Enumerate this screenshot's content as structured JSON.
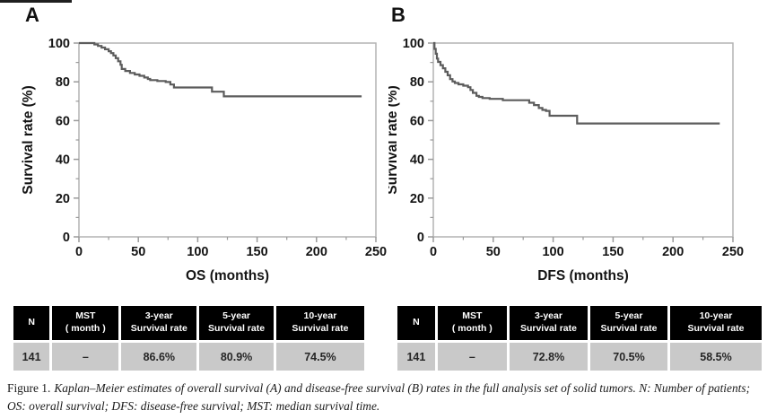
{
  "caption": {
    "prefix": "Figure 1.",
    "text": "Kaplan–Meier estimates of overall survival (A) and disease-free survival (B) rates in the full analysis set of solid tumors. N: Number of patients; OS: overall survival; DFS: disease-free survival; MST: median survival time."
  },
  "tables": [
    {
      "headers": [
        [
          "N",
          ""
        ],
        [
          "MST",
          "( month )"
        ],
        [
          "3-year",
          "Survival rate"
        ],
        [
          "5-year",
          "Survival rate"
        ],
        [
          "10-year",
          "Survival rate"
        ]
      ],
      "row": [
        "141",
        "–",
        "86.6%",
        "80.9%",
        "74.5%"
      ]
    },
    {
      "headers": [
        [
          "N",
          ""
        ],
        [
          "MST",
          "( month )"
        ],
        [
          "3-year",
          "Survival rate"
        ],
        [
          "5-year",
          "Survival rate"
        ],
        [
          "10-year",
          "Survival rate"
        ]
      ],
      "row": [
        "141",
        "–",
        "72.8%",
        "70.5%",
        "58.5%"
      ]
    }
  ],
  "chart_data": [
    {
      "type": "line",
      "step": true,
      "panel_label": "A",
      "title": "",
      "xlabel": "OS (months)",
      "ylabel": "Survival rate (%)",
      "xlim": [
        0,
        250
      ],
      "ylim": [
        0,
        100
      ],
      "xticks": [
        0,
        50,
        100,
        150,
        200,
        250
      ],
      "yticks": [
        0,
        20,
        40,
        60,
        80,
        100
      ],
      "x_minor_step": 25,
      "y_minor_step": 10,
      "grid": false,
      "legend": "none",
      "line_color": "#5c5c5c",
      "axis_color": "#b3b3b3",
      "tick_color": "#9a9a9a",
      "points": [
        [
          0,
          100
        ],
        [
          11,
          100
        ],
        [
          13,
          99.3
        ],
        [
          16,
          98.5
        ],
        [
          19,
          97.7
        ],
        [
          22,
          96.8
        ],
        [
          25,
          95.8
        ],
        [
          27,
          94.8
        ],
        [
          29,
          93.6
        ],
        [
          31,
          92.2
        ],
        [
          33,
          90.6
        ],
        [
          35,
          88.8
        ],
        [
          36,
          86.6
        ],
        [
          39,
          85.6
        ],
        [
          43,
          84.6
        ],
        [
          47,
          83.8
        ],
        [
          51,
          83.1
        ],
        [
          55,
          82.2
        ],
        [
          58,
          81.5
        ],
        [
          60,
          80.9
        ],
        [
          66,
          80.4
        ],
        [
          73,
          79.9
        ],
        [
          77,
          78.6
        ],
        [
          80,
          77.1
        ],
        [
          112,
          74.9
        ],
        [
          122,
          72.5
        ],
        [
          238,
          72.5
        ]
      ],
      "annotations": {
        "three_year": "86.6%",
        "five_year": "80.9%",
        "ten_year": "74.5%"
      }
    },
    {
      "type": "line",
      "step": true,
      "panel_label": "B",
      "title": "",
      "xlabel": "DFS (months)",
      "ylabel": "Survival rate (%)",
      "xlim": [
        0,
        250
      ],
      "ylim": [
        0,
        100
      ],
      "xticks": [
        0,
        50,
        100,
        150,
        200,
        250
      ],
      "yticks": [
        0,
        20,
        40,
        60,
        80,
        100
      ],
      "x_minor_step": 25,
      "y_minor_step": 10,
      "grid": false,
      "legend": "none",
      "line_color": "#5c5c5c",
      "axis_color": "#b3b3b3",
      "tick_color": "#9a9a9a",
      "points": [
        [
          0,
          100
        ],
        [
          1,
          97
        ],
        [
          2,
          94.5
        ],
        [
          3,
          92
        ],
        [
          4,
          90.3
        ],
        [
          6,
          88.6
        ],
        [
          8,
          87
        ],
        [
          10,
          85.2
        ],
        [
          12,
          83.4
        ],
        [
          14,
          81.4
        ],
        [
          16,
          80.2
        ],
        [
          18,
          79.4
        ],
        [
          21,
          78.7
        ],
        [
          25,
          78
        ],
        [
          29,
          77.2
        ],
        [
          31,
          75.8
        ],
        [
          33,
          74.3
        ],
        [
          36,
          72.8
        ],
        [
          38,
          72.2
        ],
        [
          41,
          71.6
        ],
        [
          47,
          71.2
        ],
        [
          58,
          70.5
        ],
        [
          80,
          69.2
        ],
        [
          84,
          68
        ],
        [
          88,
          66.5
        ],
        [
          91,
          65.5
        ],
        [
          94,
          65
        ],
        [
          97,
          62.5
        ],
        [
          120,
          58.5
        ],
        [
          239,
          58.5
        ]
      ],
      "annotations": {
        "three_year": "72.8%",
        "five_year": "70.5%",
        "ten_year": "58.5%"
      }
    }
  ]
}
